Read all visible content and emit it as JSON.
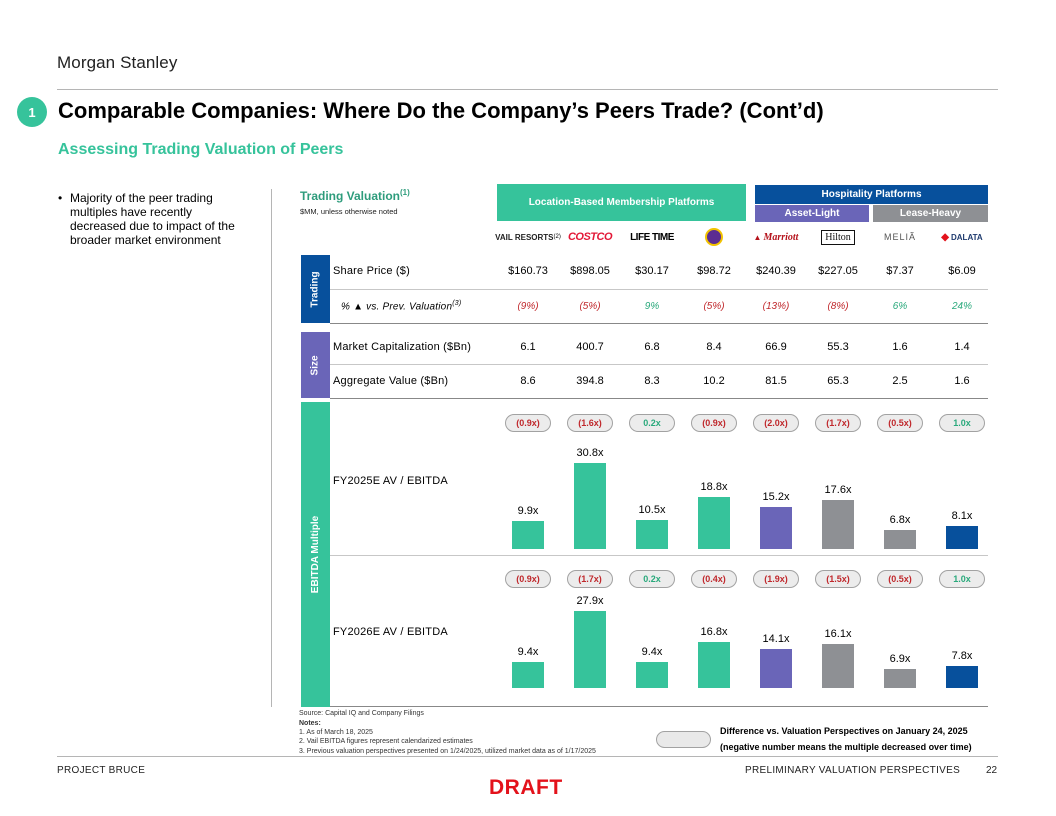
{
  "brand": "Morgan Stanley",
  "section_number": "1",
  "title": "Comparable Companies: Where Do the Company’s Peers Trade? (Cont’d)",
  "subtitle": "Assessing Trading Valuation of Peers",
  "bullet": "Majority of the peer trading multiples have recently decreased due to impact of the broader market environment",
  "table": {
    "title": "Trading Valuation",
    "title_sup": "(1)",
    "unit_note": "$MM, unless otherwise noted",
    "group_location": "Location-Based Membership Platforms",
    "group_hospitality": "Hospitality Platforms",
    "sub_asset_light": "Asset-Light",
    "sub_lease_heavy": "Lease-Heavy",
    "companies": [
      {
        "name": "VAIL RESORTS",
        "sup": "(2)",
        "color": "#222222"
      },
      {
        "name": "COSTCO",
        "color": "#e31837"
      },
      {
        "name": "LIFE TIME",
        "color": "#000000"
      },
      {
        "name": "Planet Fitness",
        "color": "#5c2d91"
      },
      {
        "name": "Marriott",
        "color": "#b5121b"
      },
      {
        "name": "Hilton",
        "color": "#111111"
      },
      {
        "name": "MELIÃ",
        "color": "#555555"
      },
      {
        "name": "DALATA",
        "color": "#1e3a6e"
      }
    ],
    "sections": {
      "trading": "Trading",
      "size": "Size",
      "ebitda": "EBITDA Multiple"
    },
    "share_price": {
      "label": "Share Price ($)",
      "values": [
        "$160.73",
        "$898.05",
        "$30.17",
        "$98.72",
        "$240.39",
        "$227.05",
        "$7.37",
        "$6.09"
      ]
    },
    "pct_change": {
      "label": "% ▲ vs. Prev. Valuation",
      "sup": "(3)",
      "values": [
        "(9%)",
        "(5%)",
        "9%",
        "(5%)",
        "(13%)",
        "(8%)",
        "6%",
        "24%"
      ],
      "colors": [
        "#c0282c",
        "#c0282c",
        "#2aa97c",
        "#c0282c",
        "#c0282c",
        "#c0282c",
        "#2aa97c",
        "#2aa97c"
      ]
    },
    "market_cap": {
      "label": "Market Capitalization ($Bn)",
      "values": [
        "6.1",
        "400.7",
        "6.8",
        "8.4",
        "66.9",
        "55.3",
        "1.6",
        "1.4"
      ]
    },
    "aggregate_value": {
      "label": "Aggregate Value ($Bn)",
      "values": [
        "8.6",
        "394.8",
        "8.3",
        "10.2",
        "81.5",
        "65.3",
        "2.5",
        "1.6"
      ]
    },
    "fy2025": {
      "label": "FY2025E AV / EBITDA",
      "diffs": [
        "(0.9x)",
        "(1.6x)",
        "0.2x",
        "(0.9x)",
        "(2.0x)",
        "(1.7x)",
        "(0.5x)",
        "1.0x"
      ],
      "diff_colors": [
        "#c0282c",
        "#c0282c",
        "#2aa97c",
        "#c0282c",
        "#c0282c",
        "#c0282c",
        "#c0282c",
        "#2aa97c"
      ]
    },
    "fy2026": {
      "label": "FY2026E AV / EBITDA",
      "diffs": [
        "(0.9x)",
        "(1.7x)",
        "0.2x",
        "(0.4x)",
        "(1.9x)",
        "(1.5x)",
        "(0.5x)",
        "1.0x"
      ],
      "diff_colors": [
        "#c0282c",
        "#c0282c",
        "#2aa97c",
        "#c0282c",
        "#c0282c",
        "#c0282c",
        "#c0282c",
        "#2aa97c"
      ]
    }
  },
  "chart_data": [
    {
      "type": "bar",
      "categories": [
        "VAIL RESORTS",
        "COSTCO",
        "LIFE TIME",
        "Planet Fitness",
        "Marriott",
        "Hilton",
        "MELIÃ",
        "DALATA"
      ],
      "values": [
        9.9,
        30.8,
        10.5,
        18.8,
        15.2,
        17.6,
        6.8,
        8.1
      ],
      "labels": [
        "9.9x",
        "30.8x",
        "10.5x",
        "18.8x",
        "15.2x",
        "17.6x",
        "6.8x",
        "8.1x"
      ],
      "colors": [
        "#36c39b",
        "#36c39b",
        "#36c39b",
        "#36c39b",
        "#6a65b8",
        "#8e9094",
        "#8e9094",
        "#07509c"
      ],
      "title": "FY2025E AV / EBITDA",
      "ylim": [
        0,
        30.8
      ]
    },
    {
      "type": "bar",
      "categories": [
        "VAIL RESORTS",
        "COSTCO",
        "LIFE TIME",
        "Planet Fitness",
        "Marriott",
        "Hilton",
        "MELIÃ",
        "DALATA"
      ],
      "values": [
        9.4,
        27.9,
        9.4,
        16.8,
        14.1,
        16.1,
        6.9,
        7.8
      ],
      "labels": [
        "9.4x",
        "27.9x",
        "9.4x",
        "16.8x",
        "14.1x",
        "16.1x",
        "6.9x",
        "7.8x"
      ],
      "colors": [
        "#36c39b",
        "#36c39b",
        "#36c39b",
        "#36c39b",
        "#6a65b8",
        "#8e9094",
        "#8e9094",
        "#07509c"
      ],
      "title": "FY2026E AV / EBITDA",
      "ylim": [
        0,
        27.9
      ]
    }
  ],
  "footnotes": {
    "source": "Source: Capital IQ and Company Filings",
    "notes_title": "Notes:",
    "notes": [
      "1.  As of March 18, 2025",
      "2.  Vail EBITDA figures represent calendarized estimates",
      "3.  Previous valuation perspectives presented on 1/24/2025, utilized market data as of 1/17/2025"
    ]
  },
  "legend": {
    "line1": "Difference vs. Valuation Perspectives on January 24, 2025",
    "line2": "(negative number means the multiple decreased over time)"
  },
  "footer": {
    "left": "PROJECT BRUCE",
    "right": "PRELIMINARY VALUATION PERSPECTIVES",
    "page": "22",
    "draft": "DRAFT"
  }
}
